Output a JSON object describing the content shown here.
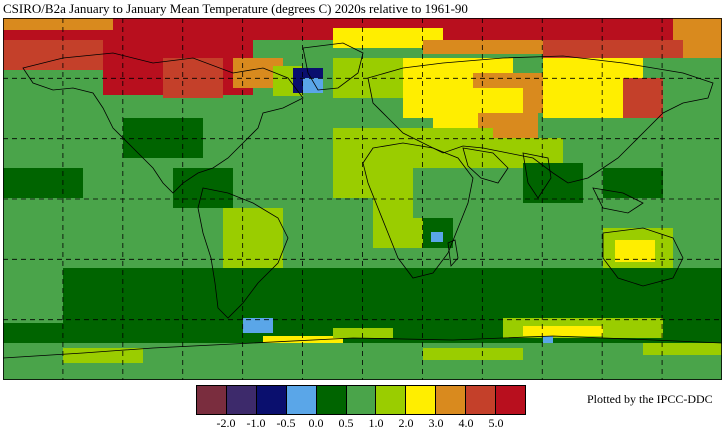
{
  "title": "CSIRO/B2a  January to January  Mean Temperature (degrees C)  2020s  relative to 1961-90",
  "credit": "Plotted by the IPCC-DDC",
  "legend": {
    "colors": [
      "#7a2d3e",
      "#3d2a6b",
      "#0a0f6e",
      "#5aa6e8",
      "#006400",
      "#4aa44a",
      "#9acd00",
      "#ffee00",
      "#d98a1e",
      "#c4402a",
      "#b80f1e"
    ],
    "labels": [
      "-2.0",
      "-1.0",
      "-0.5",
      "0.0",
      "0.5",
      "1.0",
      "2.0",
      "3.0",
      "4.0",
      "5.0"
    ]
  },
  "map_colors": {
    "ocean_base": "#4aa44a",
    "land_line": "#000000",
    "grid_line": "#000000"
  }
}
